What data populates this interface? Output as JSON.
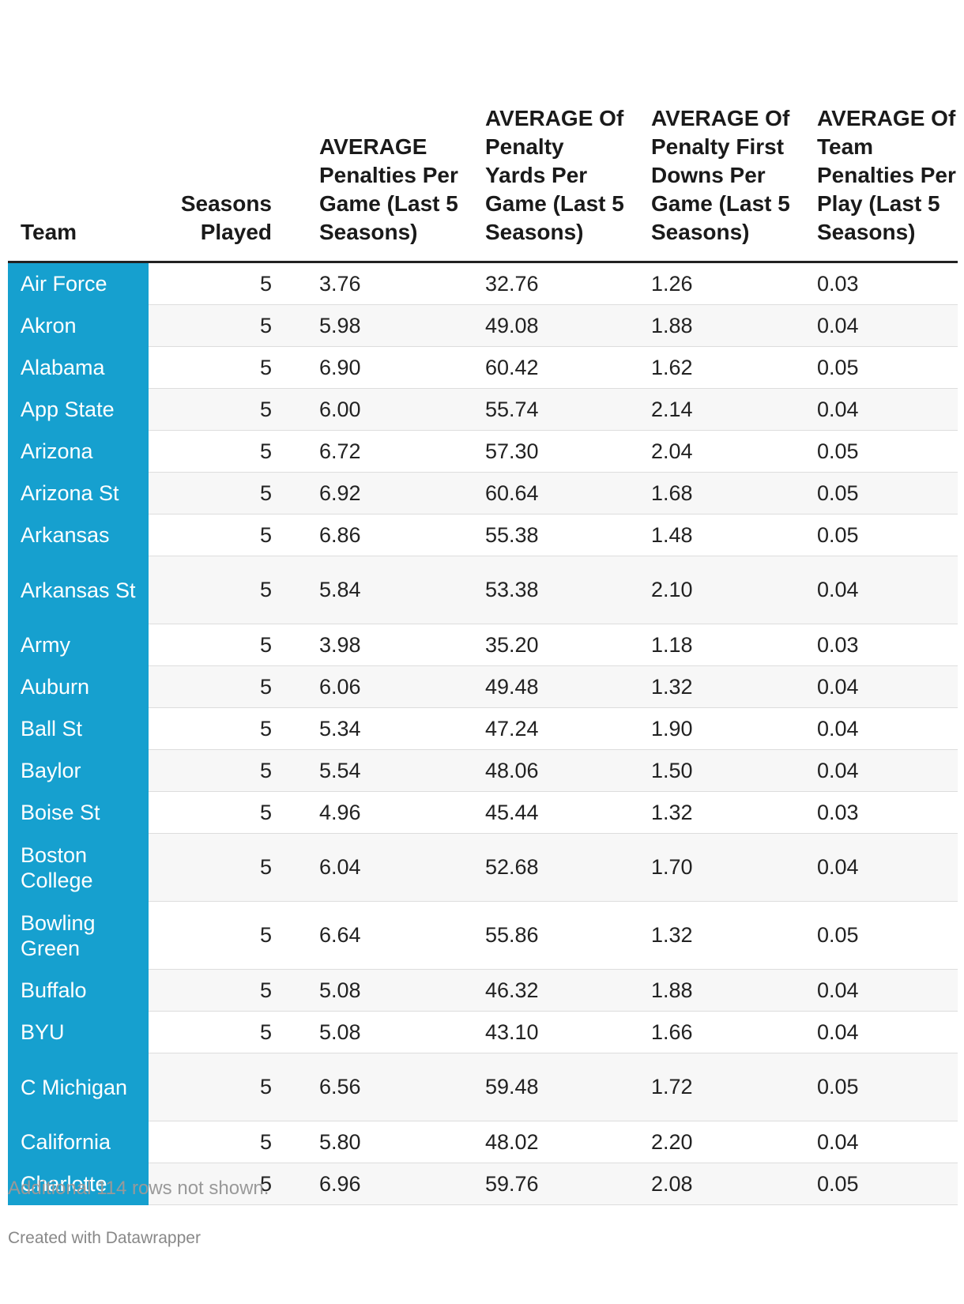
{
  "chart_data": {
    "type": "table",
    "columns": [
      "Team",
      "Seasons Played",
      "AVERAGE Penalties Per Game (Last 5 Seasons)",
      "AVERAGE Of Penalty Yards Per Game (Last 5 Seasons)",
      "AVERAGE Of Penalty First Downs Per Game (Last 5 Seasons)",
      "AVERAGE Of Team Penalties Per Play (Last 5 Seasons)"
    ],
    "rows": [
      [
        "Air Force",
        "5",
        "3.76",
        "32.76",
        "1.26",
        "0.03"
      ],
      [
        "Akron",
        "5",
        "5.98",
        "49.08",
        "1.88",
        "0.04"
      ],
      [
        "Alabama",
        "5",
        "6.90",
        "60.42",
        "1.62",
        "0.05"
      ],
      [
        "App State",
        "5",
        "6.00",
        "55.74",
        "2.14",
        "0.04"
      ],
      [
        "Arizona",
        "5",
        "6.72",
        "57.30",
        "2.04",
        "0.05"
      ],
      [
        "Arizona St",
        "5",
        "6.92",
        "60.64",
        "1.68",
        "0.05"
      ],
      [
        "Arkansas",
        "5",
        "6.86",
        "55.38",
        "1.48",
        "0.05"
      ],
      [
        "Arkansas St",
        "5",
        "5.84",
        "53.38",
        "2.10",
        "0.04"
      ],
      [
        "Army",
        "5",
        "3.98",
        "35.20",
        "1.18",
        "0.03"
      ],
      [
        "Auburn",
        "5",
        "6.06",
        "49.48",
        "1.32",
        "0.04"
      ],
      [
        "Ball St",
        "5",
        "5.34",
        "47.24",
        "1.90",
        "0.04"
      ],
      [
        "Baylor",
        "5",
        "5.54",
        "48.06",
        "1.50",
        "0.04"
      ],
      [
        "Boise St",
        "5",
        "4.96",
        "45.44",
        "1.32",
        "0.03"
      ],
      [
        "Boston College",
        "5",
        "6.04",
        "52.68",
        "1.70",
        "0.04"
      ],
      [
        "Bowling Green",
        "5",
        "6.64",
        "55.86",
        "1.32",
        "0.05"
      ],
      [
        "Buffalo",
        "5",
        "5.08",
        "46.32",
        "1.88",
        "0.04"
      ],
      [
        "BYU",
        "5",
        "5.08",
        "43.10",
        "1.66",
        "0.04"
      ],
      [
        "C Michigan",
        "5",
        "6.56",
        "59.48",
        "1.72",
        "0.05"
      ],
      [
        "California",
        "5",
        "5.80",
        "48.02",
        "2.20",
        "0.04"
      ],
      [
        "Charlotte",
        "5",
        "6.96",
        "59.76",
        "2.08",
        "0.05"
      ]
    ],
    "team_column_color": "#16a0cf"
  },
  "footer": {
    "note": "Additional 114 rows not shown.",
    "credit": "Created with Datawrapper"
  }
}
